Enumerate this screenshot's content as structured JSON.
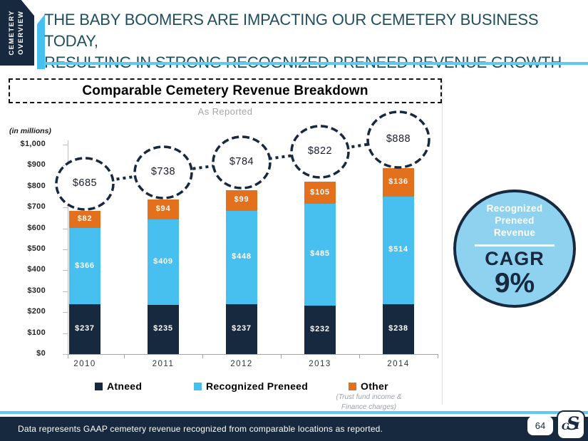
{
  "header": {
    "tab_lines": [
      "CEMETERY",
      "OVERVIEW"
    ],
    "title_line1": "THE BABY BOOMERS ARE IMPACTING OUR CEMETERY BUSINESS TODAY,",
    "title_line2": "RESULTING IN STRONG RECOGNIZED PRENEED REVENUE GROWTH"
  },
  "chart_data": {
    "type": "bar",
    "variant": "stacked",
    "title": "Comparable Cemetery Revenue Breakdown",
    "subtitle": "As Reported",
    "units_note": "(in millions)",
    "categories": [
      "2010",
      "2011",
      "2012",
      "2013",
      "2014"
    ],
    "series": [
      {
        "name": "Atneed",
        "color": "#17293F",
        "values": [
          237,
          235,
          237,
          232,
          238
        ]
      },
      {
        "name": "Recognized Preneed",
        "color": "#47BFEF",
        "values": [
          366,
          409,
          448,
          485,
          514
        ]
      },
      {
        "name": "Other",
        "color": "#E2701C",
        "values": [
          82,
          94,
          99,
          105,
          136
        ]
      }
    ],
    "totals": [
      685,
      738,
      784,
      822,
      888
    ],
    "y_axis": {
      "min": 0,
      "max": 1000,
      "step": 100,
      "tick_prefix": "$"
    },
    "grid": "off",
    "legend_position": "bottom",
    "other_note_line1": "(Trust fund income &",
    "other_note_line2": "Finance charges)"
  },
  "cagr": {
    "label_lines": [
      "Recognized",
      "Preneed",
      "Revenue"
    ],
    "metric": "CAGR",
    "value": "9%"
  },
  "footer": {
    "note": "Data represents GAAP cemetery revenue recognized from comparable locations as reported.",
    "page": "64",
    "logo_letters": [
      "S",
      "C",
      "I"
    ]
  },
  "colors": {
    "navy": "#17293F",
    "preneed_blue": "#47BFEF",
    "other_orange": "#E2701C",
    "accent_rule_blue": "#5FC9F1",
    "cagr_fill_blue": "#8FD2F0",
    "title_teal": "#1F4E5F",
    "subtitle_gray": "#A6A6A6"
  }
}
